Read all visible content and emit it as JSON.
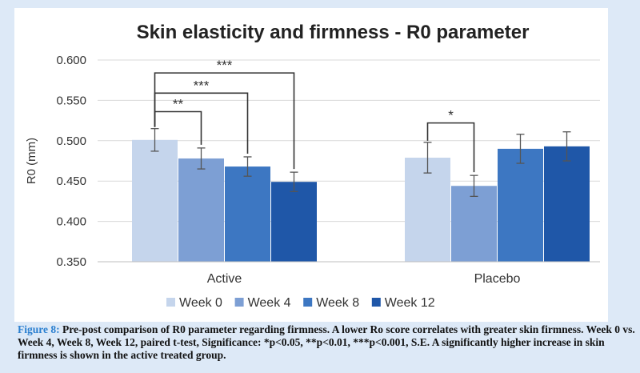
{
  "chart_data": {
    "type": "bar",
    "title": "Skin elasticity and firmness - R0 parameter",
    "xlabel": "",
    "ylabel": "R0 (mm)",
    "ylim": [
      0.35,
      0.6
    ],
    "yticks": [
      "0.350",
      "0.400",
      "0.450",
      "0.500",
      "0.550",
      "0.600"
    ],
    "grid": true,
    "legend": "bottom",
    "categories": [
      "Active",
      "Placebo"
    ],
    "series": [
      {
        "name": "Week 0",
        "color": "#c5d5ec",
        "values": [
          0.501,
          0.479
        ],
        "errors": [
          0.014,
          0.019
        ]
      },
      {
        "name": "Week 4",
        "color": "#7d9fd4",
        "values": [
          0.478,
          0.444
        ],
        "errors": [
          0.013,
          0.013
        ]
      },
      {
        "name": "Week 8",
        "color": "#3d77c2",
        "values": [
          0.468,
          0.49
        ],
        "errors": [
          0.012,
          0.018
        ]
      },
      {
        "name": "Week 12",
        "color": "#1f57a8",
        "values": [
          0.449,
          0.493
        ],
        "errors": [
          0.012,
          0.018
        ]
      }
    ],
    "significance": [
      {
        "category": 0,
        "from": 0,
        "to": 1,
        "label": "**"
      },
      {
        "category": 0,
        "from": 0,
        "to": 2,
        "label": "***"
      },
      {
        "category": 0,
        "from": 0,
        "to": 3,
        "label": "***"
      },
      {
        "category": 1,
        "from": 0,
        "to": 1,
        "label": "*"
      }
    ]
  },
  "caption": {
    "figure_label": "Figure 8:",
    "text": " Pre-post comparison of R0 parameter regarding firmness. A lower Ro score correlates with greater skin firmness. Week 0 vs. Week 4, Week 8, Week 12, paired t-test, Significance: *p<0.05, **p<0.01, ***p<0.001, S.E. A significantly higher increase in skin firmness is shown in the active treated group."
  }
}
